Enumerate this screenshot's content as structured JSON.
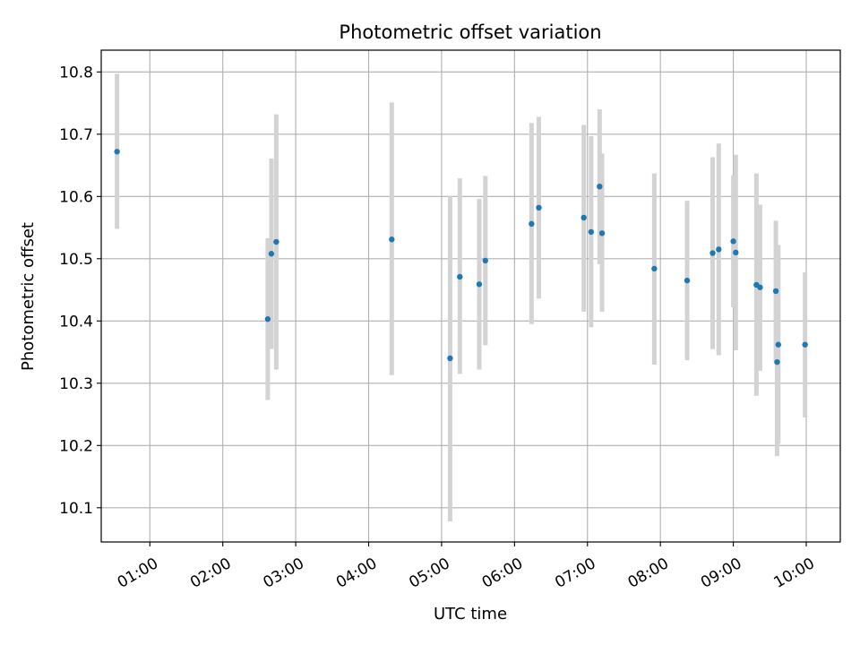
{
  "chart_data": {
    "type": "scatter",
    "title": "Photometric offset variation",
    "xlabel": "UTC time",
    "ylabel": "Photometric offset",
    "x_unit": "UTC time of day",
    "xlim": [
      "00:20",
      "10:28"
    ],
    "ylim": [
      10.045,
      10.835
    ],
    "grid": true,
    "x_ticks": [
      "01:00",
      "02:00",
      "03:00",
      "04:00",
      "05:00",
      "06:00",
      "07:00",
      "08:00",
      "09:00",
      "10:00"
    ],
    "y_ticks": [
      10.1,
      10.2,
      10.3,
      10.4,
      10.5,
      10.6,
      10.7,
      10.8
    ],
    "colors": {
      "marker": "#1f77b4",
      "errorbar": "#d3d3d3",
      "grid": "#b0b0b0"
    },
    "series": [
      {
        "points": [
          {
            "x": "00:33",
            "y": 10.672,
            "lo": 10.548,
            "hi": 10.797
          },
          {
            "x": "02:37",
            "y": 10.403,
            "lo": 10.273,
            "hi": 10.533
          },
          {
            "x": "02:40",
            "y": 10.508,
            "lo": 10.355,
            "hi": 10.661
          },
          {
            "x": "02:44",
            "y": 10.527,
            "lo": 10.322,
            "hi": 10.732
          },
          {
            "x": "04:19",
            "y": 10.531,
            "lo": 10.313,
            "hi": 10.751
          },
          {
            "x": "05:07",
            "y": 10.34,
            "lo": 10.078,
            "hi": 10.6
          },
          {
            "x": "05:15",
            "y": 10.471,
            "lo": 10.315,
            "hi": 10.629
          },
          {
            "x": "05:31",
            "y": 10.459,
            "lo": 10.322,
            "hi": 10.596
          },
          {
            "x": "05:36",
            "y": 10.497,
            "lo": 10.361,
            "hi": 10.633
          },
          {
            "x": "06:14",
            "y": 10.556,
            "lo": 10.395,
            "hi": 10.718
          },
          {
            "x": "06:20",
            "y": 10.582,
            "lo": 10.436,
            "hi": 10.728
          },
          {
            "x": "06:57",
            "y": 10.566,
            "lo": 10.415,
            "hi": 10.715
          },
          {
            "x": "07:03",
            "y": 10.543,
            "lo": 10.39,
            "hi": 10.697
          },
          {
            "x": "07:10",
            "y": 10.616,
            "lo": 10.491,
            "hi": 10.74
          },
          {
            "x": "07:12",
            "y": 10.541,
            "lo": 10.415,
            "hi": 10.669
          },
          {
            "x": "07:55",
            "y": 10.484,
            "lo": 10.33,
            "hi": 10.637
          },
          {
            "x": "08:22",
            "y": 10.465,
            "lo": 10.337,
            "hi": 10.593
          },
          {
            "x": "08:43",
            "y": 10.509,
            "lo": 10.355,
            "hi": 10.663
          },
          {
            "x": "08:48",
            "y": 10.515,
            "lo": 10.345,
            "hi": 10.685
          },
          {
            "x": "09:00",
            "y": 10.528,
            "lo": 10.422,
            "hi": 10.634
          },
          {
            "x": "09:02",
            "y": 10.51,
            "lo": 10.353,
            "hi": 10.667
          },
          {
            "x": "09:19",
            "y": 10.458,
            "lo": 10.28,
            "hi": 10.637
          },
          {
            "x": "09:22",
            "y": 10.454,
            "lo": 10.32,
            "hi": 10.587
          },
          {
            "x": "09:35",
            "y": 10.448,
            "lo": 10.334,
            "hi": 10.561
          },
          {
            "x": "09:36",
            "y": 10.334,
            "lo": 10.183,
            "hi": 10.485
          },
          {
            "x": "09:37",
            "y": 10.362,
            "lo": 10.203,
            "hi": 10.522
          },
          {
            "x": "09:59",
            "y": 10.362,
            "lo": 10.245,
            "hi": 10.478
          }
        ]
      }
    ]
  }
}
